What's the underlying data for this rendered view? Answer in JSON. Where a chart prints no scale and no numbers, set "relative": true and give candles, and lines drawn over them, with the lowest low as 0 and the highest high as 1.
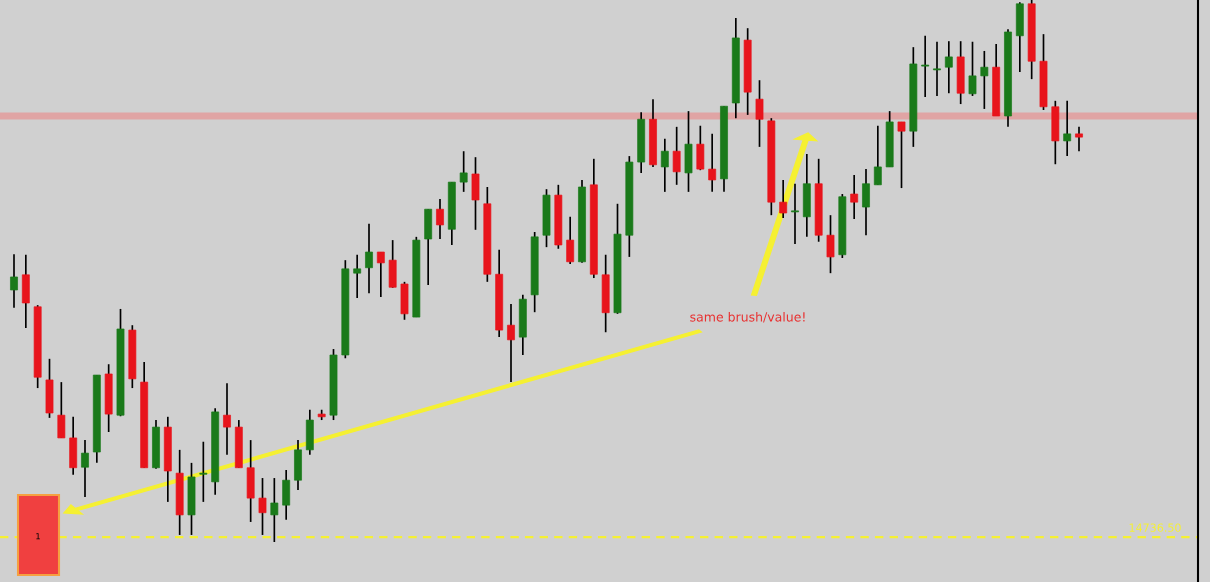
{
  "chart_data": {
    "type": "candlestick",
    "relative": true,
    "categories": [
      null,
      null,
      null,
      null,
      null,
      null,
      null,
      null,
      null,
      null,
      null,
      null,
      null,
      null,
      null,
      null,
      null,
      null,
      null,
      null,
      null,
      null,
      null,
      null,
      null,
      null,
      null,
      null,
      null,
      null,
      null,
      null,
      null,
      null,
      null,
      null,
      null,
      null,
      null,
      null,
      null,
      null,
      null,
      null,
      null,
      null,
      null,
      null,
      null,
      null,
      null,
      null,
      null,
      null,
      null,
      null,
      null,
      null,
      null,
      null,
      null,
      null,
      null,
      null,
      null,
      null,
      null,
      null,
      null,
      null,
      null,
      null,
      null,
      null,
      null,
      null,
      null,
      null,
      null,
      null,
      null,
      null,
      null,
      null,
      null,
      null,
      null,
      null,
      null,
      null,
      null
    ],
    "ohlc": [
      [
        0.465,
        0.531,
        0.432,
        0.489
      ],
      [
        0.493,
        0.53,
        0.395,
        0.441
      ],
      [
        0.434,
        0.437,
        0.284,
        0.304
      ],
      [
        0.299,
        0.338,
        0.229,
        0.238
      ],
      [
        0.234,
        0.295,
        0.192,
        0.192
      ],
      [
        0.192,
        0.231,
        0.124,
        0.137
      ],
      [
        0.138,
        0.188,
        0.083,
        0.164
      ],
      [
        0.166,
        0.308,
        0.146,
        0.308
      ],
      [
        0.31,
        0.328,
        0.203,
        0.236
      ],
      [
        0.234,
        0.43,
        0.232,
        0.393
      ],
      [
        0.391,
        0.4,
        0.284,
        0.301
      ],
      [
        0.295,
        0.332,
        0.137,
        0.137
      ],
      [
        0.137,
        0.225,
        0.135,
        0.212
      ],
      [
        0.212,
        0.231,
        0.074,
        0.131
      ],
      [
        0.127,
        0.17,
        0.013,
        0.05
      ],
      [
        0.05,
        0.146,
        0.013,
        0.12
      ],
      [
        0.125,
        0.185,
        0.074,
        0.127
      ],
      [
        0.111,
        0.247,
        0.087,
        0.24
      ],
      [
        0.234,
        0.293,
        0.161,
        0.212
      ],
      [
        0.212,
        0.225,
        0.137,
        0.137
      ],
      [
        0.137,
        0.188,
        0.037,
        0.081
      ],
      [
        0.081,
        0.118,
        0.013,
        0.054
      ],
      [
        0.05,
        0.118,
        0.0,
        0.072
      ],
      [
        0.068,
        0.133,
        0.041,
        0.114
      ],
      [
        0.114,
        0.188,
        0.096,
        0.17
      ],
      [
        0.17,
        0.244,
        0.161,
        0.225
      ],
      [
        0.236,
        0.244,
        0.225,
        0.231
      ],
      [
        0.234,
        0.356,
        0.225,
        0.345
      ],
      [
        0.345,
        0.52,
        0.339,
        0.504
      ],
      [
        0.496,
        0.53,
        0.45,
        0.504
      ],
      [
        0.506,
        0.587,
        0.459,
        0.535
      ],
      [
        0.535,
        0.535,
        0.452,
        0.515
      ],
      [
        0.52,
        0.557,
        0.469,
        0.47
      ],
      [
        0.476,
        0.48,
        0.41,
        0.421
      ],
      [
        0.415,
        0.563,
        0.415,
        0.557
      ],
      [
        0.559,
        0.614,
        0.474,
        0.614
      ],
      [
        0.614,
        0.633,
        0.559,
        0.585
      ],
      [
        0.577,
        0.664,
        0.548,
        0.664
      ],
      [
        0.664,
        0.721,
        0.646,
        0.681
      ],
      [
        0.679,
        0.71,
        0.576,
        0.631
      ],
      [
        0.624,
        0.655,
        0.48,
        0.494
      ],
      [
        0.494,
        0.539,
        0.378,
        0.391
      ],
      [
        0.4,
        0.439,
        0.295,
        0.373
      ],
      [
        0.378,
        0.456,
        0.345,
        0.448
      ],
      [
        0.456,
        0.572,
        0.424,
        0.563
      ],
      [
        0.566,
        0.651,
        0.544,
        0.64
      ],
      [
        0.64,
        0.659,
        0.541,
        0.548
      ],
      [
        0.557,
        0.6,
        0.513,
        0.517
      ],
      [
        0.517,
        0.668,
        0.515,
        0.655
      ],
      [
        0.659,
        0.707,
        0.487,
        0.494
      ],
      [
        0.493,
        0.53,
        0.387,
        0.423
      ],
      [
        0.423,
        0.624,
        0.421,
        0.568
      ],
      [
        0.566,
        0.712,
        0.526,
        0.701
      ],
      [
        0.701,
        0.793,
        0.681,
        0.78
      ],
      [
        0.78,
        0.817,
        0.692,
        0.696
      ],
      [
        0.692,
        0.744,
        0.646,
        0.721
      ],
      [
        0.721,
        0.766,
        0.659,
        0.683
      ],
      [
        0.681,
        0.795,
        0.646,
        0.734
      ],
      [
        0.734,
        0.768,
        0.686,
        0.688
      ],
      [
        0.688,
        0.753,
        0.646,
        0.668
      ],
      [
        0.67,
        0.804,
        0.646,
        0.804
      ],
      [
        0.81,
        0.967,
        0.782,
        0.93
      ],
      [
        0.926,
        0.948,
        0.788,
        0.83
      ],
      [
        0.817,
        0.852,
        0.729,
        0.78
      ],
      [
        0.777,
        0.782,
        0.603,
        0.627
      ],
      [
        0.627,
        0.668,
        0.598,
        0.607
      ],
      [
        0.609,
        0.661,
        0.55,
        0.611
      ],
      [
        0.6,
        0.716,
        0.563,
        0.661
      ],
      [
        0.661,
        0.707,
        0.554,
        0.566
      ],
      [
        0.566,
        0.603,
        0.496,
        0.526
      ],
      [
        0.53,
        0.642,
        0.524,
        0.637
      ],
      [
        0.642,
        0.677,
        0.596,
        0.627
      ],
      [
        0.618,
        0.688,
        0.566,
        0.661
      ],
      [
        0.659,
        0.768,
        0.659,
        0.692
      ],
      [
        0.692,
        0.795,
        0.692,
        0.775
      ],
      [
        0.775,
        0.775,
        0.653,
        0.758
      ],
      [
        0.758,
        0.913,
        0.729,
        0.882
      ],
      [
        0.878,
        0.934,
        0.821,
        0.878
      ],
      [
        0.871,
        0.923,
        0.823,
        0.871
      ],
      [
        0.876,
        0.924,
        0.828,
        0.895
      ],
      [
        0.895,
        0.924,
        0.808,
        0.828
      ],
      [
        0.827,
        0.923,
        0.823,
        0.86
      ],
      [
        0.86,
        0.906,
        0.799,
        0.876
      ],
      [
        0.876,
        0.919,
        0.786,
        0.786
      ],
      [
        0.786,
        0.946,
        0.766,
        0.941
      ],
      [
        0.934,
        0.996,
        0.867,
        0.993
      ],
      [
        0.993,
        1.0,
        0.854,
        0.887
      ],
      [
        0.887,
        0.937,
        0.797,
        0.803
      ],
      [
        0.803,
        0.814,
        0.697,
        0.74
      ],
      [
        0.74,
        0.814,
        0.712,
        0.753
      ],
      [
        0.753,
        0.766,
        0.721,
        0.747
      ]
    ],
    "ref_lines": [
      {
        "axis": "y",
        "value": 0.786,
        "color": "#e0a4a4",
        "line_style": "solid"
      },
      {
        "axis": "y",
        "value": 0.009,
        "color": "#f5f032",
        "line_style": "dashed"
      }
    ],
    "annotations": [
      "same brush/value!",
      "1",
      "14736.50"
    ]
  }
}
